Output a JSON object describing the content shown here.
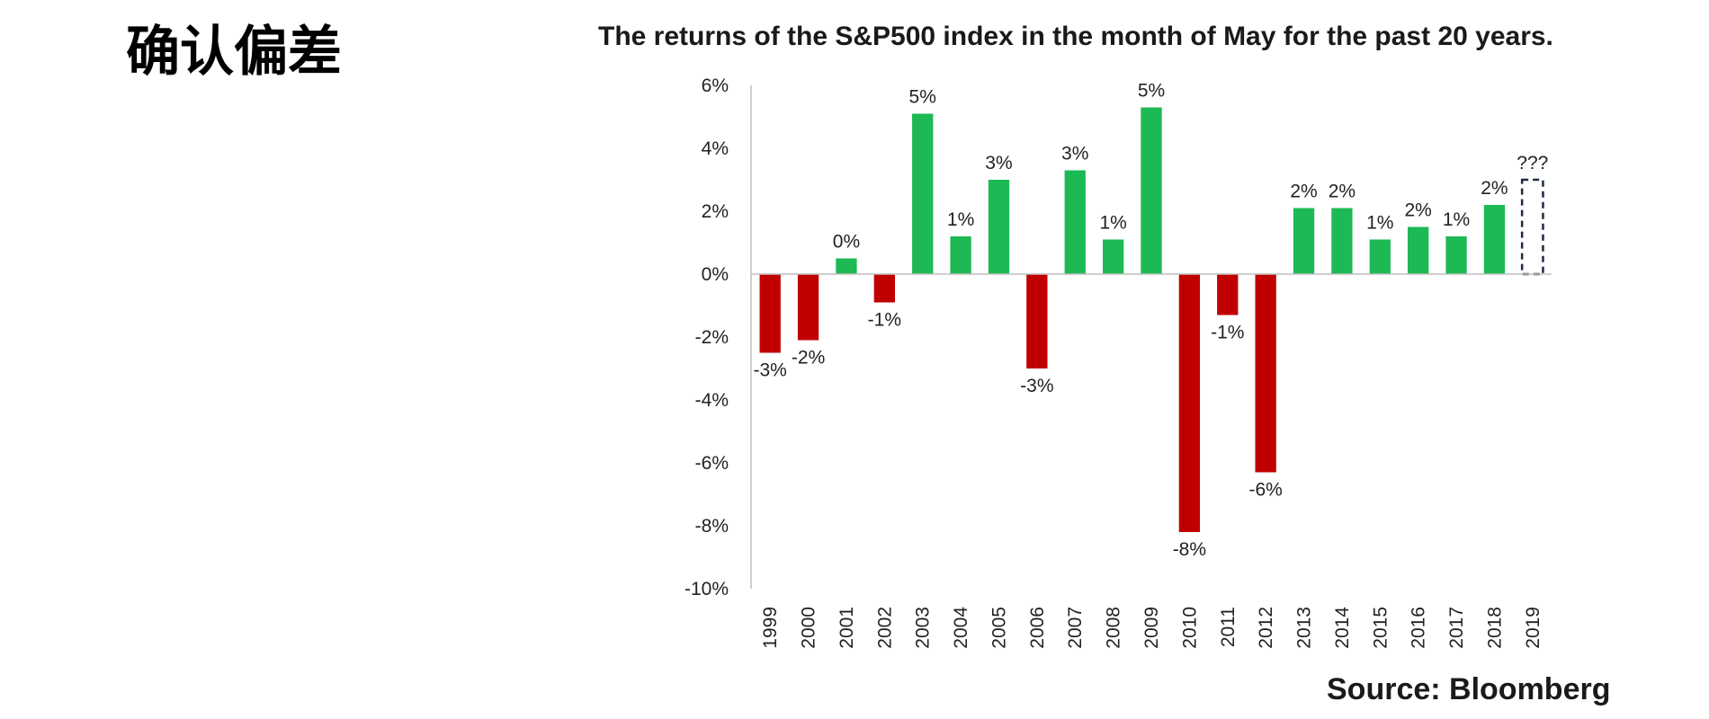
{
  "slide": {
    "title": "确认偏差"
  },
  "chart_data": {
    "type": "bar",
    "title": "The returns of the S&P500 index in the month of May for the past 20 years.",
    "source": "Source: Bloomberg",
    "xlabel": "",
    "ylabel": "",
    "ylim": [
      -10,
      6
    ],
    "yticks": [
      6,
      4,
      2,
      0,
      -2,
      -4,
      -6,
      -8,
      -10
    ],
    "ytick_labels": [
      "6%",
      "4%",
      "2%",
      "0%",
      "-2%",
      "-4%",
      "-6%",
      "-8%",
      "-10%"
    ],
    "grid": false,
    "legend": "none",
    "categories": [
      "1999",
      "2000",
      "2001",
      "2002",
      "2003",
      "2004",
      "2005",
      "2006",
      "2007",
      "2008",
      "2009",
      "2010",
      "2011",
      "2012",
      "2013",
      "2014",
      "2015",
      "2016",
      "2017",
      "2018",
      "2019"
    ],
    "values": [
      -2.5,
      -2.1,
      0.5,
      -0.9,
      5.1,
      1.2,
      3.0,
      -3.0,
      3.3,
      1.1,
      5.3,
      -8.2,
      -1.3,
      -6.3,
      2.1,
      2.1,
      1.1,
      1.5,
      1.2,
      2.2,
      3.0
    ],
    "data_labels": [
      "-3%",
      "-2%",
      "0%",
      "-1%",
      "5%",
      "1%",
      "3%",
      "-3%",
      "3%",
      "1%",
      "5%",
      "-8%",
      "-1%",
      "-6%",
      "2%",
      "2%",
      "1%",
      "2%",
      "1%",
      "2%",
      "???"
    ],
    "unknown_categories": [
      "2019"
    ],
    "colors": {
      "positive": "#1db954",
      "negative": "#c00000",
      "unknown_outline": "#1f2a44",
      "axis": "#bfbfbf"
    }
  }
}
